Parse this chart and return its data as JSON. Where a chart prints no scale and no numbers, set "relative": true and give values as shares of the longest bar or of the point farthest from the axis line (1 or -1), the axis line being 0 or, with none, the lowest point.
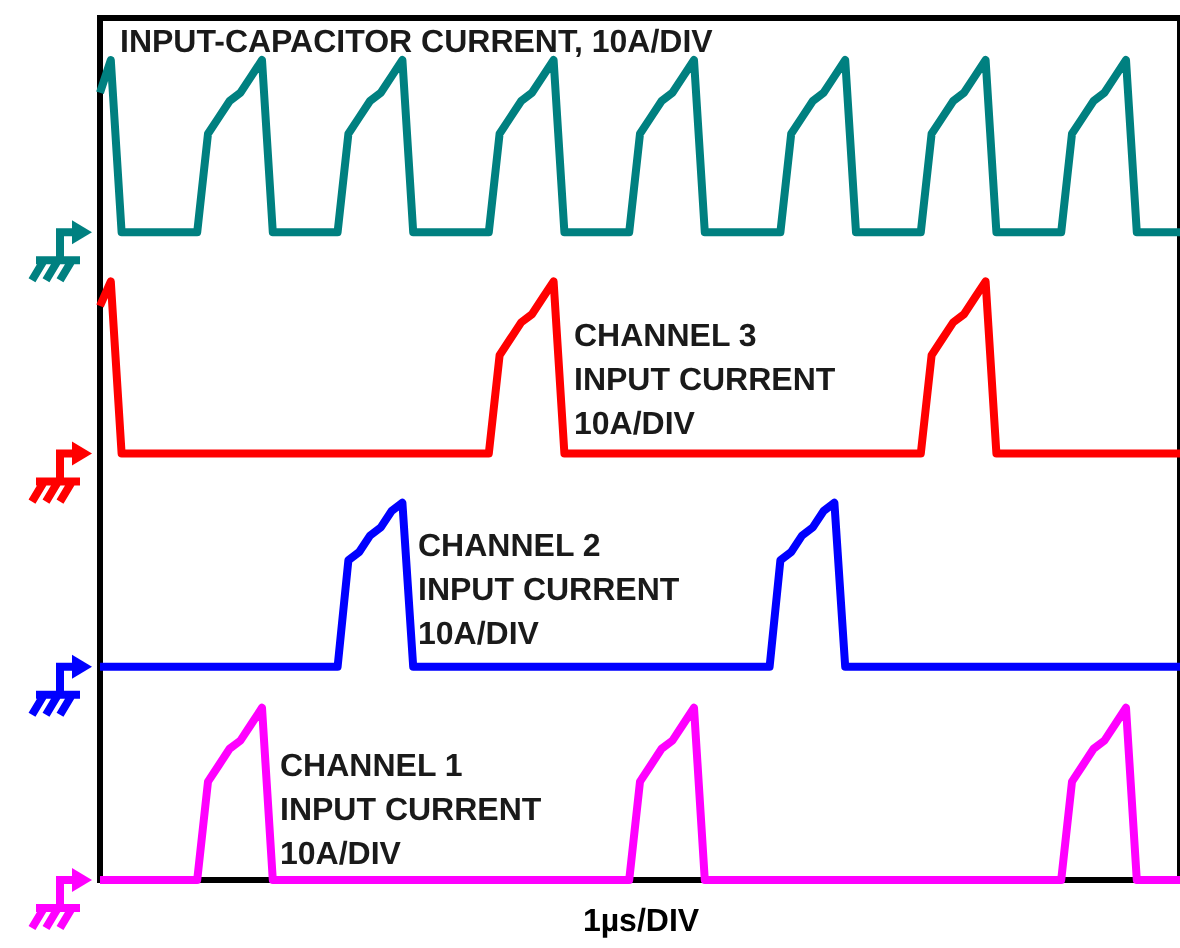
{
  "chart_data": {
    "type": "line",
    "xlabel": "1µs/DIV",
    "relative": true,
    "line_style": "solid",
    "marker": "none",
    "categories": [
      null,
      null,
      null,
      null,
      null,
      null,
      null,
      null,
      null,
      null,
      null,
      null,
      null,
      null,
      null,
      null,
      null,
      null,
      null,
      null,
      null,
      null,
      null,
      null,
      null,
      null,
      null,
      null,
      null,
      null,
      null,
      null,
      null,
      null,
      null,
      null,
      null,
      null,
      null,
      null,
      null,
      null,
      null,
      null,
      null,
      null,
      null,
      null,
      null,
      null,
      null,
      null,
      null,
      null,
      null,
      null,
      null,
      null,
      null,
      null,
      null,
      null,
      null,
      null,
      null,
      null,
      null,
      null,
      null,
      null,
      null,
      null,
      null,
      null,
      null,
      null,
      null,
      null,
      null,
      null,
      null,
      null,
      null,
      null,
      null,
      null,
      null,
      null,
      null,
      null,
      null,
      null,
      null,
      null,
      null,
      null,
      null,
      null,
      null,
      null,
      null
    ],
    "series": [
      {
        "name": "INPUT-CAPACITOR CURRENT, 10A/DIV",
        "color": "#008080",
        "values": [
          0.96,
          1,
          0.79,
          0.79,
          0.79,
          0.79,
          0.79,
          0.79,
          0.79,
          0.79,
          0.91,
          0.93,
          0.95,
          0.96,
          0.98,
          1,
          0.79,
          0.79,
          0.79,
          0.79,
          0.79,
          0.79,
          0.79,
          0.91,
          0.93,
          0.95,
          0.96,
          0.98,
          1,
          0.79,
          0.79,
          0.79,
          0.79,
          0.79,
          0.79,
          0.79,
          0.79,
          0.91,
          0.93,
          0.95,
          0.96,
          0.98,
          1,
          0.79,
          0.79,
          0.79,
          0.79,
          0.79,
          0.79,
          0.79,
          0.91,
          0.93,
          0.95,
          0.96,
          0.98,
          1,
          0.79,
          0.79,
          0.79,
          0.79,
          0.79,
          0.79,
          0.79,
          0.79,
          0.91,
          0.93,
          0.95,
          0.96,
          0.98,
          1,
          0.79,
          0.79,
          0.79,
          0.79,
          0.79,
          0.79,
          0.79,
          0.91,
          0.93,
          0.95,
          0.96,
          0.98,
          1,
          0.79,
          0.79,
          0.79,
          0.79,
          0.79,
          0.79,
          0.79,
          0.91,
          0.93,
          0.95,
          0.96,
          0.98,
          1,
          0.79,
          0.79,
          0.79,
          0.79,
          0.79
        ]
      },
      {
        "name": "CHANNEL 3\nINPUT CURRENT\n10A/DIV",
        "color": "#ff0000",
        "values": [
          0.7,
          0.73,
          0.52,
          0.52,
          0.52,
          0.52,
          0.52,
          0.52,
          0.52,
          0.52,
          0.52,
          0.52,
          0.52,
          0.52,
          0.52,
          0.52,
          0.52,
          0.52,
          0.52,
          0.52,
          0.52,
          0.52,
          0.52,
          0.52,
          0.52,
          0.52,
          0.52,
          0.52,
          0.52,
          0.52,
          0.52,
          0.52,
          0.52,
          0.52,
          0.52,
          0.52,
          0.52,
          0.64,
          0.66,
          0.68,
          0.69,
          0.71,
          0.73,
          0.52,
          0.52,
          0.52,
          0.52,
          0.52,
          0.52,
          0.52,
          0.52,
          0.52,
          0.52,
          0.52,
          0.52,
          0.52,
          0.52,
          0.52,
          0.52,
          0.52,
          0.52,
          0.52,
          0.52,
          0.52,
          0.52,
          0.52,
          0.52,
          0.52,
          0.52,
          0.52,
          0.52,
          0.52,
          0.52,
          0.52,
          0.52,
          0.52,
          0.52,
          0.64,
          0.66,
          0.68,
          0.69,
          0.71,
          0.73,
          0.52,
          0.52,
          0.52,
          0.52,
          0.52,
          0.52,
          0.52,
          0.52,
          0.52,
          0.52,
          0.52,
          0.52,
          0.52,
          0.52,
          0.52,
          0.52,
          0.52,
          0.52
        ]
      },
      {
        "name": "CHANNEL 2\nINPUT CURRENT\n10A/DIV",
        "color": "#0000ff",
        "values": [
          0.26,
          0.26,
          0.26,
          0.26,
          0.26,
          0.26,
          0.26,
          0.26,
          0.26,
          0.26,
          0.26,
          0.26,
          0.26,
          0.26,
          0.26,
          0.26,
          0.26,
          0.26,
          0.26,
          0.26,
          0.26,
          0.26,
          0.26,
          0.39,
          0.4,
          0.42,
          0.43,
          0.45,
          0.46,
          0.26,
          0.26,
          0.26,
          0.26,
          0.26,
          0.26,
          0.26,
          0.26,
          0.26,
          0.26,
          0.26,
          0.26,
          0.26,
          0.26,
          0.26,
          0.26,
          0.26,
          0.26,
          0.26,
          0.26,
          0.26,
          0.26,
          0.26,
          0.26,
          0.26,
          0.26,
          0.26,
          0.26,
          0.26,
          0.26,
          0.26,
          0.26,
          0.26,
          0.26,
          0.39,
          0.4,
          0.42,
          0.43,
          0.45,
          0.46,
          0.26,
          0.26,
          0.26,
          0.26,
          0.26,
          0.26,
          0.26,
          0.26,
          0.26,
          0.26,
          0.26,
          0.26,
          0.26,
          0.26,
          0.26,
          0.26,
          0.26,
          0.26,
          0.26,
          0.26,
          0.26,
          0.26,
          0.26,
          0.26,
          0.26,
          0.26,
          0.26,
          0.26,
          0.26,
          0.26,
          0.26,
          0.26
        ]
      },
      {
        "name": "CHANNEL 1\nINPUT CURRENT\n10A/DIV",
        "color": "#ff00ff",
        "values": [
          0,
          0,
          0,
          0,
          0,
          0,
          0,
          0,
          0,
          0,
          0.12,
          0.14,
          0.16,
          0.17,
          0.19,
          0.21,
          0,
          0,
          0,
          0,
          0,
          0,
          0,
          0,
          0,
          0,
          0,
          0,
          0,
          0,
          0,
          0,
          0,
          0,
          0,
          0,
          0,
          0,
          0,
          0,
          0,
          0,
          0,
          0,
          0,
          0,
          0,
          0,
          0,
          0,
          0.12,
          0.14,
          0.16,
          0.17,
          0.19,
          0.21,
          0,
          0,
          0,
          0,
          0,
          0,
          0,
          0,
          0,
          0,
          0,
          0,
          0,
          0,
          0,
          0,
          0,
          0,
          0,
          0,
          0,
          0,
          0,
          0,
          0,
          0,
          0,
          0,
          0,
          0,
          0,
          0,
          0,
          0,
          0.12,
          0.14,
          0.16,
          0.17,
          0.19,
          0.21,
          0,
          0,
          0,
          0,
          0
        ]
      }
    ]
  }
}
